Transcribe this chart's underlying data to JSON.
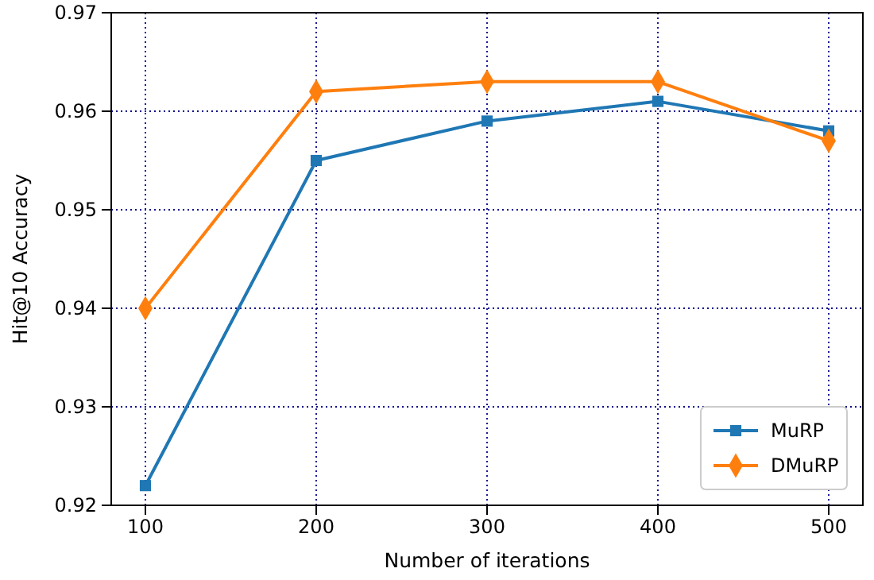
{
  "chart_data": {
    "type": "line",
    "xlabel": "Number of iterations",
    "ylabel": "Hit@10 Accuracy",
    "x": [
      100,
      200,
      300,
      400,
      500
    ],
    "series": [
      {
        "name": "MuRP",
        "color": "#1f77b4",
        "values": [
          0.922,
          0.955,
          0.959,
          0.961,
          0.958
        ],
        "marker": "square"
      },
      {
        "name": "DMuRP",
        "color": "#ff7f0e",
        "values": [
          0.94,
          0.962,
          0.963,
          0.963,
          0.957
        ],
        "marker": "diamond"
      }
    ],
    "xlim": [
      80,
      520
    ],
    "xticks": [
      100,
      200,
      300,
      400,
      500
    ],
    "ylim": [
      0.92,
      0.97
    ],
    "yticks": [
      0.92,
      0.93,
      0.94,
      0.95,
      0.96,
      0.97
    ],
    "grid": true,
    "legend": "bottom right",
    "line_style": "solid"
  }
}
